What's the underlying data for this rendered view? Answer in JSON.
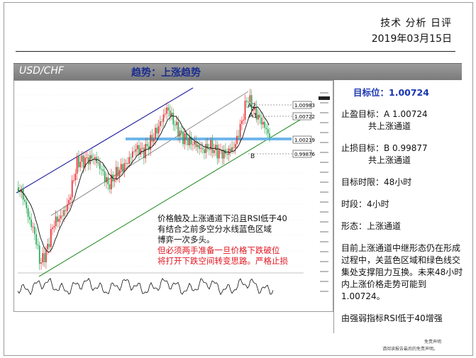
{
  "header": {
    "title": "技术 分析 日评",
    "date": "2019年03月15日"
  },
  "band": {
    "pair": "USD/CHF",
    "trend": "趋势：上涨趋势"
  },
  "chart": {
    "level_labels": [
      "1.00983",
      "1.00722",
      "1.00219",
      "0.99876"
    ],
    "wave_labels": [
      "A2",
      "A1",
      "B"
    ],
    "colors": {
      "up": "#e8242b",
      "down": "#1aa64b",
      "channel_top": "#1c1c9e",
      "channel_mid": "#888888",
      "channel_bottom": "#2a8f2a",
      "zone": "#6fb6ea"
    }
  },
  "annotation": {
    "line1": "价格触及上涨通道下沿且RSI低于40",
    "line2": "有结合之前多空分水线蓝色区域",
    "line3": "博弈一次多头。",
    "line4": "但必须两手准备一旦价格下跌破位",
    "line5": "将打开下跌空间转变思路。严格止损"
  },
  "panel": {
    "target": "目标位：1.00724",
    "take_profit": "止盈目标：A 1.00724",
    "take_profit_sub": "共上涨通道",
    "stop_loss": "止损目标：B 0.99877",
    "stop_loss_sub": "共上涨通道",
    "horizon": "目标时限：48小时",
    "timeframe": "时段：4小时",
    "pattern": "形态：上涨通道",
    "analysis": "目前上涨通道中继形态仍在形成过程中，关蓝色区域和绿色线交集处支撑阻力互换。未来48小时内上涨价格走势可能到1.00724。",
    "rsi": "由强弱指标RSI低于40增强"
  },
  "disclaimer": {
    "line1": "免责声明",
    "line2": "请阅读报告最后的免责声明。"
  }
}
